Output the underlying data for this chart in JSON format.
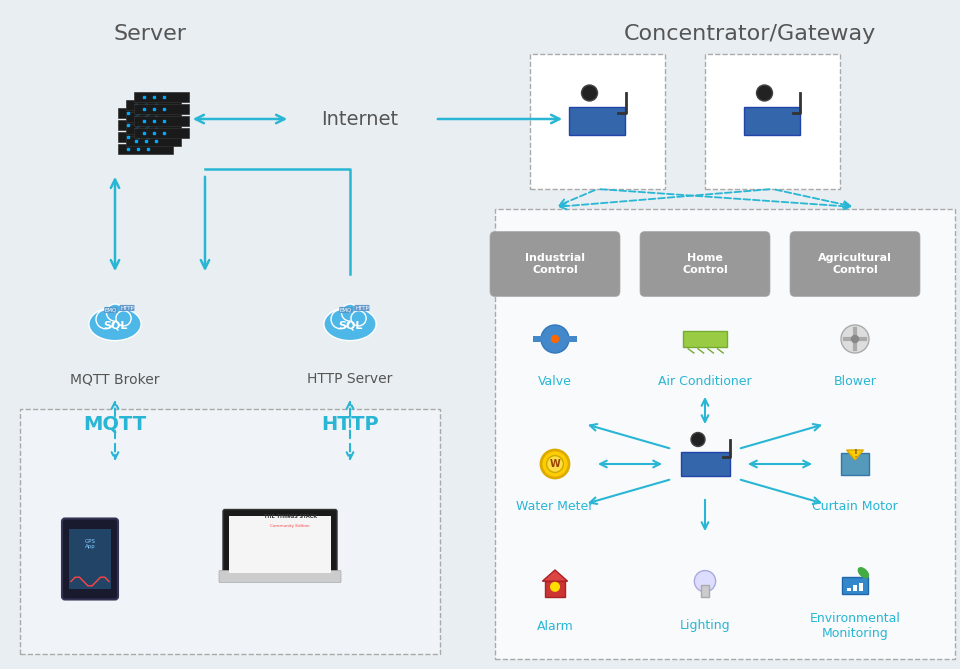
{
  "bg_color": "#e8eef2",
  "title_server": "Server",
  "title_gateway": "Concentrator/Gateway",
  "label_internet": "Internet",
  "label_mqtt": "MQTT",
  "label_http": "HTTP",
  "label_mqtt_broker": "MQTT Broker",
  "label_http_server": "HTTP Server",
  "control_labels": [
    "Industrial\nControl",
    "Home\nControl",
    "Agricultural\nControl"
  ],
  "device_labels_row1": [
    "Valve",
    "Air Conditioner",
    "Blower"
  ],
  "device_labels_row2": [
    "Water Meter",
    "",
    "Curtain Motor"
  ],
  "device_labels_row3": [
    "Alarm",
    "Lighting",
    "Environmental\nMonitoring"
  ],
  "arrow_color": "#29b6d4",
  "dashed_arrow_color": "#29b6d4",
  "text_color_dark": "#555555",
  "text_color_cyan": "#29b6d4",
  "box_color_gray": "#888888",
  "box_color_light": "#f0f4f8"
}
